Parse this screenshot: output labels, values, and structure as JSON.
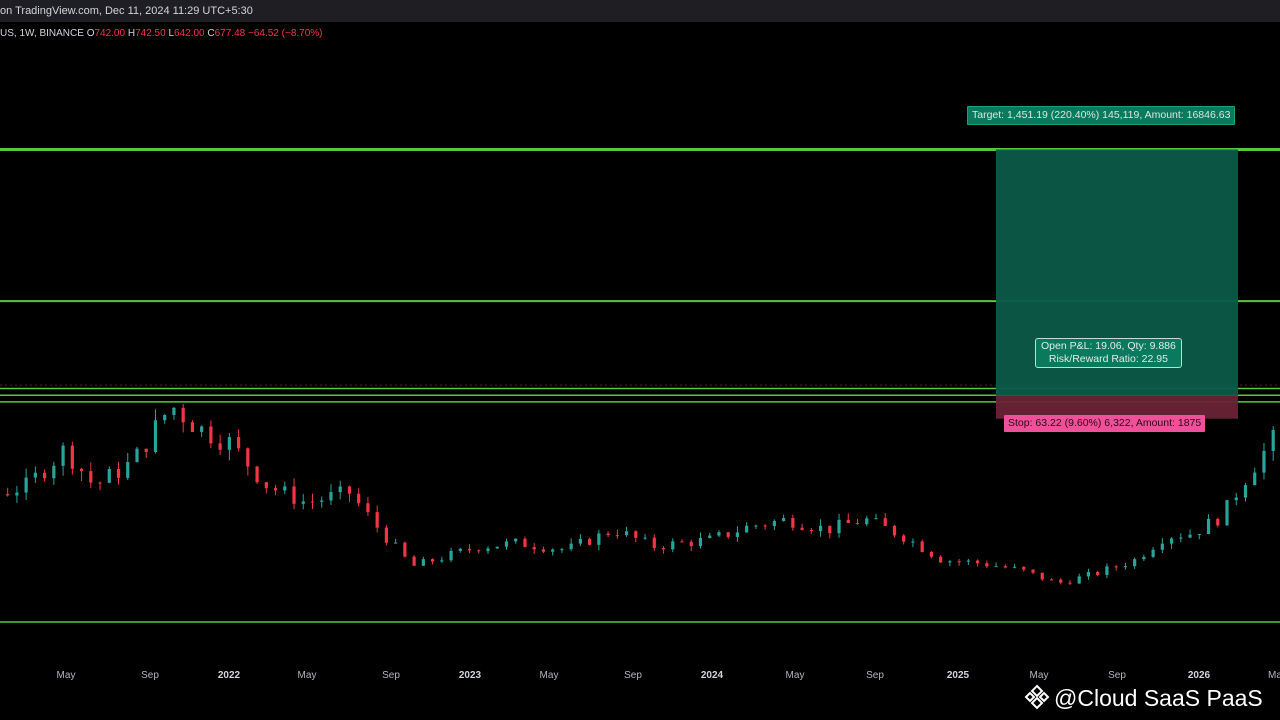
{
  "header": {
    "published": "on TradingView.com, Dec 11, 2024 11:29 UTC+5:30"
  },
  "symbol": {
    "info": "US, 1W, BINANCE",
    "open_key": "O",
    "open": "742.00",
    "high_key": "H",
    "high": "742.50",
    "low_key": "L",
    "low": "642.00",
    "close_key": "C",
    "close": "677.48",
    "change": "−64.52 (−8.70%)"
  },
  "position": {
    "target_label": "Target: 1,451.19 (220.40%) 145,119, Amount: 16846.63",
    "stop_label": "Stop: 63.22 (9.60%) 6,322, Amount: 1875",
    "pnl_line1": "Open P&L: 19.06, Qty: 9.886",
    "pnl_line2": "Risk/Reward Ratio: 22.95"
  },
  "watermark": {
    "text": "@Cloud SaaS PaaS"
  },
  "colors": {
    "up": "#26a69a",
    "down": "#f23645",
    "level_line": "#55c93a",
    "target_fill": "#0b5a48",
    "stop_fill": "#6a2337"
  },
  "chart_data": {
    "type": "candlestick",
    "title": "",
    "x_ticks": [
      "May",
      "Sep",
      "2022",
      "May",
      "Sep",
      "2023",
      "May",
      "Sep",
      "2024",
      "May",
      "Sep",
      "2025",
      "May",
      "Sep",
      "2026",
      "Ma"
    ],
    "y_range": [
      -40,
      1600
    ],
    "horizontal_levels": [
      1451.19,
      1000,
      740,
      720,
      700,
      45
    ],
    "price_points": [
      [
        2021.1,
        320
      ],
      [
        2021.18,
        520
      ],
      [
        2021.26,
        640
      ],
      [
        2021.33,
        690
      ],
      [
        2021.4,
        510
      ],
      [
        2021.5,
        420
      ],
      [
        2021.58,
        450
      ],
      [
        2021.66,
        560
      ],
      [
        2021.72,
        450
      ],
      [
        2021.8,
        520
      ],
      [
        2021.88,
        690
      ],
      [
        2021.94,
        620
      ],
      [
        2022.0,
        580
      ],
      [
        2022.08,
        450
      ],
      [
        2022.16,
        400
      ],
      [
        2022.25,
        430
      ],
      [
        2022.3,
        340
      ],
      [
        2022.38,
        210
      ],
      [
        2022.45,
        240
      ],
      [
        2022.52,
        270
      ],
      [
        2022.6,
        280
      ],
      [
        2022.7,
        260
      ],
      [
        2022.8,
        320
      ],
      [
        2022.88,
        270
      ],
      [
        2023.0,
        290
      ],
      [
        2023.08,
        330
      ],
      [
        2023.16,
        350
      ],
      [
        2023.24,
        320
      ],
      [
        2023.32,
        350
      ],
      [
        2023.4,
        300
      ],
      [
        2023.48,
        230
      ],
      [
        2023.56,
        220
      ],
      [
        2023.64,
        200
      ],
      [
        2023.72,
        160
      ],
      [
        2023.8,
        190
      ],
      [
        2023.88,
        230
      ],
      [
        2023.94,
        300
      ],
      [
        2024.0,
        310
      ],
      [
        2024.06,
        360
      ],
      [
        2024.12,
        500
      ],
      [
        2024.18,
        610
      ],
      [
        2024.25,
        640
      ],
      [
        2024.32,
        650
      ],
      [
        2024.38,
        700
      ],
      [
        2024.45,
        600
      ],
      [
        2024.52,
        580
      ],
      [
        2024.58,
        610
      ],
      [
        2024.66,
        630
      ],
      [
        2024.74,
        650
      ],
      [
        2024.82,
        690
      ],
      [
        2024.87,
        760
      ],
      [
        2024.91,
        677
      ]
    ]
  }
}
